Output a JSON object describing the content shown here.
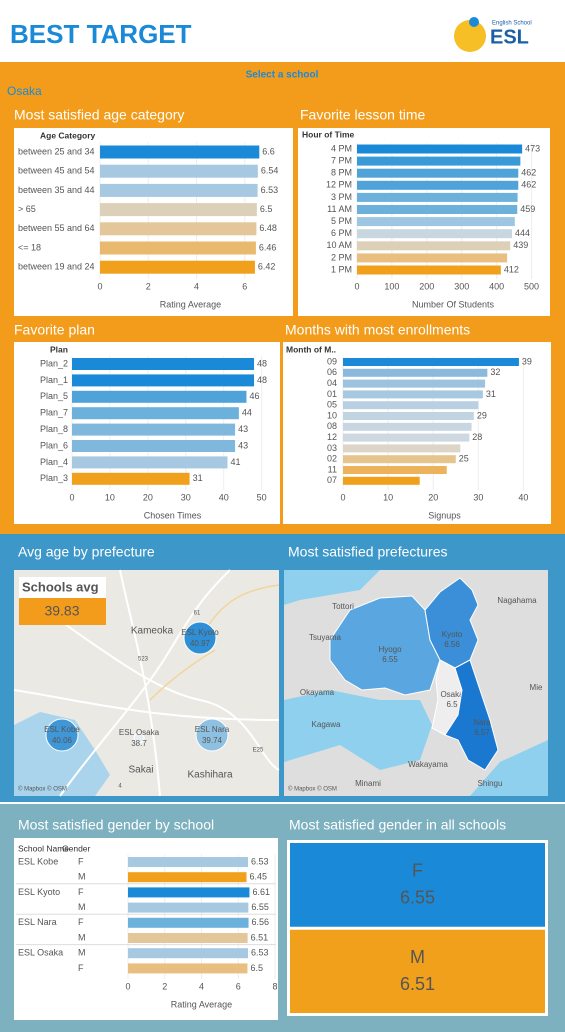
{
  "header": {
    "title": "BEST TARGET",
    "logo_caption": "English School",
    "logo_name": "ESL",
    "filter_label": "Select a school",
    "filter_value": "Osaka"
  },
  "chart_data": [
    {
      "type": "hbar",
      "title": "Most satisfied age category",
      "y_header": "Age Category",
      "categories": [
        "between 25 and 34",
        "between 45 and 54",
        "between 35 and 44",
        "> 65",
        "between 55 and 64",
        "<= 18",
        "between 19 and 24"
      ],
      "values": [
        6.6,
        6.54,
        6.53,
        6.5,
        6.48,
        6.46,
        6.42
      ],
      "colors": [
        "#1a8ad8",
        "#a6c8e0",
        "#a6c8e0",
        "#ddd0b8",
        "#e3c69a",
        "#e8b96e",
        "#f0a01a"
      ],
      "xlim": [
        0,
        7.5
      ],
      "xticks": [
        0,
        2,
        4,
        6
      ],
      "x_label": "Rating Average"
    },
    {
      "type": "hbar",
      "title": "Favorite lesson time",
      "y_header": "Hour of Time",
      "categories": [
        "4 PM",
        "7 PM",
        "8 PM",
        "12 PM",
        "3 PM",
        "11 AM",
        "5 PM",
        "6 PM",
        "10 AM",
        "2 PM",
        "1 PM"
      ],
      "values": [
        473,
        468,
        462,
        462,
        460,
        459,
        452,
        444,
        439,
        430,
        412
      ],
      "labeled": [
        true,
        false,
        true,
        true,
        false,
        true,
        false,
        true,
        true,
        false,
        true
      ],
      "colors": [
        "#1a8ad8",
        "#3a9ad8",
        "#4fa3d8",
        "#4fa3d8",
        "#6cb0dc",
        "#6cb0dc",
        "#9cc6e2",
        "#c8d6e0",
        "#ddd0b8",
        "#e8bf80",
        "#f0a01a"
      ],
      "xlim": [
        0,
        550
      ],
      "xticks": [
        0,
        100,
        200,
        300,
        400,
        500
      ],
      "x_label": "Number Of Students"
    },
    {
      "type": "hbar",
      "title": "Favorite plan",
      "y_header": "Plan",
      "categories": [
        "Plan_2",
        "Plan_1",
        "Plan_5",
        "Plan_7",
        "Plan_8",
        "Plan_6",
        "Plan_4",
        "Plan_3"
      ],
      "values": [
        48,
        48,
        46,
        44,
        43,
        43,
        41,
        31
      ],
      "colors": [
        "#1a8ad8",
        "#1a8ad8",
        "#4fa3d8",
        "#6cb0dc",
        "#7fb8dc",
        "#7fb8dc",
        "#a6c8e0",
        "#f0a01a"
      ],
      "xlim": [
        0,
        53
      ],
      "xticks": [
        0,
        10,
        20,
        30,
        40,
        50
      ],
      "x_label": "Chosen Times"
    },
    {
      "type": "hbar",
      "title": "Months with most enrollments",
      "y_header": "Month of M..",
      "categories": [
        "09",
        "06",
        "04",
        "01",
        "05",
        "10",
        "08",
        "12",
        "03",
        "02",
        "11",
        "07"
      ],
      "values": [
        39,
        32,
        31.5,
        31,
        30,
        29,
        28.5,
        28,
        26,
        25,
        23,
        17
      ],
      "labeled": [
        true,
        true,
        false,
        true,
        false,
        true,
        false,
        true,
        false,
        true,
        false,
        false
      ],
      "colors": [
        "#1a8ad8",
        "#8ab9dc",
        "#9cc2e0",
        "#a6c8e0",
        "#b8d0e2",
        "#c0d4e2",
        "#c8d6e2",
        "#cdd8e0",
        "#ddd6c8",
        "#e6c48e",
        "#ecb35c",
        "#f0a01a"
      ],
      "xlim": [
        0,
        45
      ],
      "xticks": [
        0,
        10,
        20,
        30,
        40
      ],
      "x_label": "Signups"
    },
    {
      "type": "bubble_map",
      "title": "Avg age by prefecture",
      "card_label": "Schools avg",
      "card_value": 39.83,
      "categories": [
        "ESL Kyoto",
        "ESL Kobe",
        "ESL Osaka",
        "ESL Nara"
      ],
      "values": [
        40.97,
        40.06,
        38.7,
        39.74
      ],
      "colors": [
        "#2f8fd6",
        "#3f97d8",
        "#e8eef3",
        "#8ec0e2"
      ],
      "places": [
        "Kameoka",
        "Sakai",
        "Kashihara",
        "61",
        "523",
        "E25",
        "4"
      ],
      "attribution": "© Mapbox © OSM"
    },
    {
      "type": "choropleth",
      "title": "Most satisfied prefectures",
      "categories": [
        "Hyogo",
        "Kyoto",
        "Osaka",
        "Nara"
      ],
      "values": [
        6.55,
        6.56,
        6.5,
        6.57
      ],
      "colors": [
        "#5aa6e0",
        "#3a8fd8",
        "#eeeeee",
        "#1a78d0"
      ],
      "places": [
        "Tottori",
        "Nagahama",
        "Tsuyama",
        "Okayama",
        "Kagawa",
        "Wakayama",
        "Mie",
        "Minami",
        "Shingu"
      ],
      "attribution": "© Mapbox © OSM"
    },
    {
      "type": "grouped_hbar",
      "title": "Most satisfied gender by school",
      "y_headers": [
        "School Name",
        "Gender"
      ],
      "groups": [
        "ESL Kobe",
        "ESL Kyoto",
        "ESL Nara",
        "ESL Osaka"
      ],
      "subcategories": [
        [
          "F",
          "M"
        ],
        [
          "F",
          "M"
        ],
        [
          "F",
          "M"
        ],
        [
          "M",
          "F"
        ]
      ],
      "values": [
        [
          6.53,
          6.45
        ],
        [
          6.61,
          6.55
        ],
        [
          6.56,
          6.51
        ],
        [
          6.53,
          6.5
        ]
      ],
      "colors": [
        [
          "#a6c8e0",
          "#f0a01a"
        ],
        [
          "#1a8ad8",
          "#a6c8e0"
        ],
        [
          "#6cb0dc",
          "#e3c69a"
        ],
        [
          "#a6c8e0",
          "#e8bf80"
        ]
      ],
      "xlim": [
        0,
        8
      ],
      "xticks": [
        0,
        2,
        4,
        6,
        8
      ],
      "x_label": "Rating Average"
    },
    {
      "type": "blocks",
      "title": "Most satisfied gender in all schools",
      "categories": [
        "F",
        "M"
      ],
      "values": [
        6.55,
        6.51
      ],
      "colors": [
        "#1a8ad8",
        "#f0a01a"
      ]
    }
  ]
}
